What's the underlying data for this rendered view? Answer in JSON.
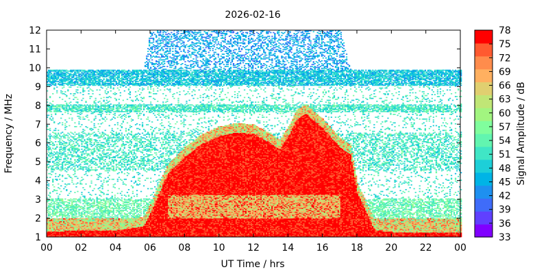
{
  "chart_data": {
    "type": "heatmap",
    "title": "2026-02-16",
    "xlabel": "UT Time / hrs",
    "ylabel": "Frequency / MHz",
    "xlim": [
      0,
      24
    ],
    "ylim": [
      1,
      12
    ],
    "x_ticks": [
      "00",
      "02",
      "04",
      "06",
      "08",
      "10",
      "12",
      "14",
      "16",
      "18",
      "20",
      "22",
      "00"
    ],
    "y_ticks": [
      "1",
      "2",
      "3",
      "4",
      "5",
      "6",
      "7",
      "8",
      "9",
      "10",
      "11",
      "12"
    ],
    "colorbar": {
      "label": "Signal Amplitude / dB",
      "range": [
        33,
        78
      ],
      "ticks": [
        "33",
        "36",
        "39",
        "42",
        "45",
        "48",
        "51",
        "54",
        "57",
        "60",
        "63",
        "66",
        "69",
        "72",
        "75",
        "78"
      ],
      "colors": [
        "#8000ff",
        "#6040ff",
        "#3f6cf9",
        "#1e90f0",
        "#00b4e6",
        "#1dcfd8",
        "#40e6c6",
        "#62f5b0",
        "#80fe9d",
        "#a2f580",
        "#c0e676",
        "#e0cf70",
        "#ffb060",
        "#ff8c4c",
        "#ff5a30",
        "#ff0000"
      ]
    },
    "profile": {
      "hours": [
        0,
        2,
        4,
        5.6,
        6,
        7,
        8,
        9,
        10,
        11,
        12,
        13,
        13.5,
        14,
        14.5,
        15,
        16,
        17,
        17.6,
        18,
        19,
        20,
        22,
        24
      ],
      "saturated_top_MHz": [
        1.5,
        1.6,
        1.6,
        1.8,
        2.5,
        4.6,
        5.5,
        6.2,
        6.6,
        6.8,
        6.7,
        6.2,
        5.9,
        6.6,
        7.5,
        7.8,
        7.0,
        6.0,
        5.6,
        3.6,
        1.6,
        1.5,
        1.5,
        1.5
      ],
      "noise_upper_MHz": [
        9.9,
        9.9,
        9.9,
        9.9,
        12,
        12,
        12,
        12,
        12,
        12,
        12,
        12,
        12,
        12,
        12,
        12,
        12,
        12,
        9.9,
        9.9,
        9.9,
        9.9,
        9.9,
        9.9
      ]
    }
  }
}
